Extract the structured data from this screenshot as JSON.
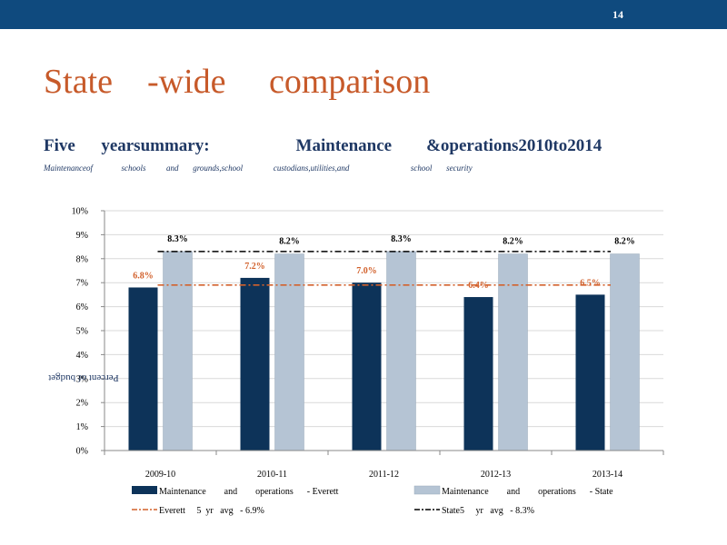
{
  "slide": {
    "page_number": "14",
    "title": "State    -wide     comparison",
    "subtitle": "Five      yearsummary:                    Maintenance        &operations2010to2014",
    "description": "Maintenanceof              schools          and       grounds,school               custodians,utilities,and                              school       security"
  },
  "chart_data": {
    "type": "bar",
    "categories": [
      "2009-10",
      "2010-11",
      "2011-12",
      "2012-13",
      "2013-14"
    ],
    "series": [
      {
        "name": "Maintenance        and        operations      - Everett",
        "values": [
          6.8,
          7.2,
          7.0,
          6.4,
          6.5
        ],
        "labels": [
          "6.8%",
          "7.2%",
          "7.0%",
          "6.4%",
          "6.5%"
        ],
        "color": "#0d3359",
        "label_color": "#d2612c"
      },
      {
        "name": "Maintenance        and        operations      - State",
        "values": [
          8.3,
          8.2,
          8.3,
          8.2,
          8.2
        ],
        "labels": [
          "8.3%",
          "8.2%",
          "8.3%",
          "8.2%",
          "8.2%"
        ],
        "color": "#b5c4d4",
        "label_color": "#000000"
      }
    ],
    "lines": [
      {
        "name": "Everett     5  yr   avg   - 6.9%",
        "value": 6.9,
        "color": "#d2612c",
        "style": "dash-dot"
      },
      {
        "name": "State5     yr   avg   - 8.3%",
        "value": 8.3,
        "color": "#000000",
        "style": "dash-dot"
      }
    ],
    "ylabel": "Percent of budget",
    "y_ticks": [
      "0%",
      "1%",
      "2%",
      "3%",
      "4%",
      "5%",
      "6%",
      "7%",
      "8%",
      "9%",
      "10%"
    ],
    "ylim": [
      0,
      10
    ],
    "grid": true,
    "legend_position": "bottom"
  }
}
